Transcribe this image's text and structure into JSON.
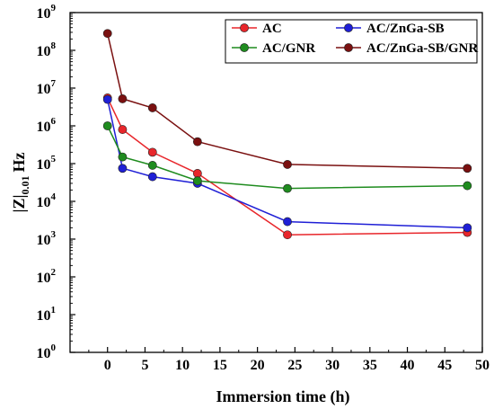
{
  "chart_data": {
    "type": "line",
    "title": "",
    "xlabel": "Immersion time (h)",
    "ylabel": {
      "main": "|Z|",
      "subscript": "0.01",
      "unit": "Hz"
    },
    "y_scale": "log",
    "xlim": [
      -5,
      50
    ],
    "ylim": [
      1,
      1000000000
    ],
    "x_ticks": [
      "0",
      "5",
      "10",
      "15",
      "20",
      "25",
      "30",
      "35",
      "40",
      "45",
      "50"
    ],
    "y_ticks": [
      {
        "base": "10",
        "exp": "0"
      },
      {
        "base": "10",
        "exp": "1"
      },
      {
        "base": "10",
        "exp": "2"
      },
      {
        "base": "10",
        "exp": "3"
      },
      {
        "base": "10",
        "exp": "4"
      },
      {
        "base": "10",
        "exp": "5"
      },
      {
        "base": "10",
        "exp": "6"
      },
      {
        "base": "10",
        "exp": "7"
      },
      {
        "base": "10",
        "exp": "8"
      },
      {
        "base": "10",
        "exp": "9"
      }
    ],
    "grid": false,
    "legend_position": "top-right",
    "x": [
      0,
      2,
      6,
      12,
      24,
      48
    ],
    "series": [
      {
        "name": "AC",
        "color": "#e8262b",
        "values": [
          5500000,
          800000,
          200000,
          55000,
          1300,
          1500
        ]
      },
      {
        "name": "AC/ZnGa-SB",
        "color": "#1f1fd6",
        "values": [
          5000000,
          75000,
          45000,
          30000,
          2900,
          2000
        ]
      },
      {
        "name": "AC/GNR",
        "color": "#1f8c1f",
        "values": [
          1000000,
          150000,
          90000,
          35000,
          22000,
          26000
        ]
      },
      {
        "name": "AC/ZnGa-SB/GNR",
        "color": "#7a1010",
        "values": [
          280000000,
          5200000,
          3000000,
          380000,
          95000,
          75000
        ]
      }
    ],
    "draw_order": [
      3,
      0,
      1,
      2
    ]
  }
}
